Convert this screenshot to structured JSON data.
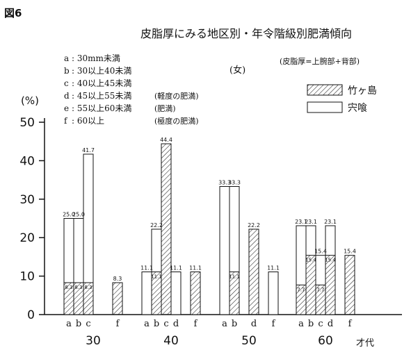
{
  "figure_label": "図6",
  "chart_data": {
    "type": "bar",
    "title": "皮脂厚にみる地区別・年令階級別肥満傾向",
    "subtitle": "(女)",
    "note": "(皮脂厚=上腕部+背部)",
    "ylabel": "(%)",
    "xlabel": "才代",
    "ylim": [
      0,
      50
    ],
    "yticks": [
      0,
      10,
      20,
      30,
      40,
      50
    ],
    "grid": false,
    "legend_position": "top-right",
    "category_key": [
      {
        "code": "a",
        "range": ": 30mm未満",
        "note": ""
      },
      {
        "code": "b",
        "range": ": 30以上40未満",
        "note": ""
      },
      {
        "code": "c",
        "range": ": 40以上45未満",
        "note": ""
      },
      {
        "code": "d",
        "range": ": 45以上55未満",
        "note": "(軽度の肥満)"
      },
      {
        "code": "e",
        "range": ": 55以上60未満",
        "note": "(肥満)"
      },
      {
        "code": "f",
        "range": ": 60以上",
        "note": "(極度の肥満)"
      }
    ],
    "series": [
      {
        "name": "竹ヶ島",
        "pattern": "hatched",
        "color": "#222222"
      },
      {
        "name": "宍喰",
        "pattern": "open",
        "color": "#ffffff"
      }
    ],
    "groups": [
      {
        "label": "30",
        "bars": [
          {
            "cat": "a",
            "shishikui": 25.0,
            "takegashima": 8.3,
            "label_top": "25.0",
            "label_in": "8.3"
          },
          {
            "cat": "b",
            "shishikui": 25.0,
            "takegashima": 8.3,
            "label_top": "25.0",
            "label_in": "8.3"
          },
          {
            "cat": "c",
            "shishikui": 41.7,
            "takegashima": 8.3,
            "label_top": "41.7",
            "label_in": "8.3"
          },
          {
            "cat": "f",
            "shishikui": 0,
            "takegashima": 8.3,
            "label_top": "8.3",
            "label_in": ""
          }
        ]
      },
      {
        "label": "40",
        "bars": [
          {
            "cat": "a",
            "shishikui": 11.1,
            "takegashima": 0,
            "label_top": "11.1",
            "label_in": ""
          },
          {
            "cat": "b",
            "shishikui": 22.2,
            "takegashima": 11.1,
            "label_top": "22.2",
            "label_in": "11.1"
          },
          {
            "cat": "c",
            "shishikui": 0,
            "takegashima": 44.4,
            "label_top": "44.4",
            "label_in": ""
          },
          {
            "cat": "d",
            "shishikui": 11.1,
            "takegashima": 0,
            "label_top": "11.1",
            "label_in": ""
          },
          {
            "cat": "f",
            "shishikui": 11.1,
            "takegashima": 11.1,
            "label_top": "11.1",
            "label_in": ""
          }
        ]
      },
      {
        "label": "50",
        "bars": [
          {
            "cat": "a",
            "shishikui": 33.3,
            "takegashima": 0,
            "label_top": "33.3",
            "label_in": ""
          },
          {
            "cat": "b",
            "shishikui": 33.3,
            "takegashima": 11.1,
            "label_top": "33.3",
            "label_in": "11.1"
          },
          {
            "cat": "d",
            "shishikui": 0,
            "takegashima": 22.2,
            "label_top": "22.2",
            "label_in": ""
          },
          {
            "cat": "f",
            "shishikui": 11.1,
            "takegashima": 0,
            "label_top": "11.1",
            "label_in": ""
          }
        ]
      },
      {
        "label": "60",
        "bars": [
          {
            "cat": "a",
            "shishikui": 23.1,
            "takegashima": 7.7,
            "label_top": "23.1",
            "label_in": "7.7"
          },
          {
            "cat": "b",
            "shishikui": 23.1,
            "takegashima": 15.4,
            "label_top": "23.1",
            "label_in": "15.4"
          },
          {
            "cat": "c",
            "shishikui": 15.4,
            "takegashima": 7.7,
            "label_top": "15.4",
            "label_in": "7.7"
          },
          {
            "cat": "d",
            "shishikui": 23.1,
            "takegashima": 15.4,
            "label_top": "23.1",
            "label_in": "15.4"
          },
          {
            "cat": "f",
            "shishikui": 0,
            "takegashima": 15.4,
            "label_top": "15.4",
            "label_in": ""
          }
        ]
      }
    ]
  }
}
